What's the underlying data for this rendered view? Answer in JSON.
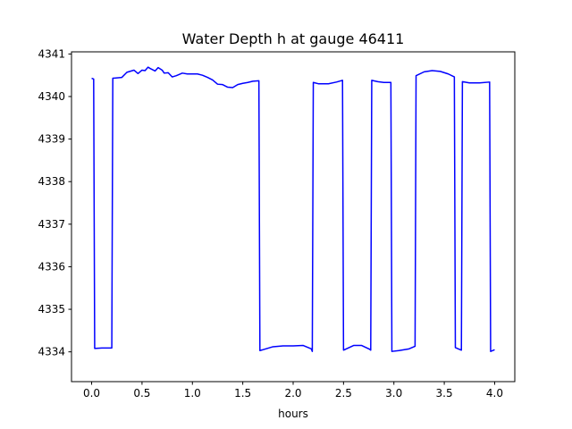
{
  "chart_data": {
    "type": "line",
    "title": "Water Depth h at gauge 46411",
    "xlabel": "hours",
    "ylabel": "",
    "xlim": [
      -0.2,
      4.2
    ],
    "ylim": [
      4333.3,
      4341.05
    ],
    "xticks": [
      0.0,
      0.5,
      1.0,
      1.5,
      2.0,
      2.5,
      3.0,
      3.5,
      4.0
    ],
    "xtick_labels": [
      "0.0",
      "0.5",
      "1.0",
      "1.5",
      "2.0",
      "2.5",
      "3.0",
      "3.5",
      "4.0"
    ],
    "yticks": [
      4334,
      4335,
      4336,
      4337,
      4338,
      4339,
      4340,
      4341
    ],
    "ytick_labels": [
      "4334",
      "4335",
      "4336",
      "4337",
      "4338",
      "4339",
      "4340",
      "4341"
    ],
    "grid": false,
    "series": [
      {
        "color": "#0000ff",
        "x": [
          0.0,
          0.02,
          0.03,
          0.1,
          0.19,
          0.2,
          0.21,
          0.3,
          0.35,
          0.42,
          0.46,
          0.5,
          0.53,
          0.56,
          0.58,
          0.63,
          0.66,
          0.7,
          0.72,
          0.76,
          0.8,
          0.84,
          0.9,
          0.95,
          1.0,
          1.05,
          1.1,
          1.15,
          1.2,
          1.25,
          1.3,
          1.35,
          1.4,
          1.45,
          1.5,
          1.55,
          1.6,
          1.66,
          1.67,
          1.7,
          1.8,
          1.9,
          2.0,
          2.1,
          2.18,
          2.19,
          2.2,
          2.25,
          2.35,
          2.43,
          2.49,
          2.5,
          2.6,
          2.68,
          2.76,
          2.77,
          2.78,
          2.84,
          2.9,
          2.97,
          2.98,
          3.05,
          3.15,
          3.21,
          3.22,
          3.3,
          3.38,
          3.46,
          3.54,
          3.6,
          3.61,
          3.67,
          3.68,
          3.75,
          3.85,
          3.95,
          3.96,
          4.0
        ],
        "y": [
          4340.43,
          4340.41,
          4334.08,
          4334.09,
          4334.09,
          4334.09,
          4340.43,
          4340.45,
          4340.57,
          4340.62,
          4340.54,
          4340.62,
          4340.61,
          4340.69,
          4340.66,
          4340.6,
          4340.68,
          4340.62,
          4340.55,
          4340.56,
          4340.46,
          4340.49,
          4340.55,
          4340.53,
          4340.53,
          4340.53,
          4340.5,
          4340.45,
          4340.39,
          4340.29,
          4340.28,
          4340.22,
          4340.21,
          4340.28,
          4340.31,
          4340.33,
          4340.36,
          4340.37,
          4334.03,
          4334.05,
          4334.12,
          4334.14,
          4334.14,
          4334.15,
          4334.07,
          4334.01,
          4340.33,
          4340.3,
          4340.3,
          4340.34,
          4340.38,
          4334.04,
          4334.15,
          4334.15,
          4334.06,
          4334.04,
          4340.38,
          4340.35,
          4340.33,
          4340.33,
          4334.01,
          4334.03,
          4334.07,
          4334.13,
          4340.49,
          4340.58,
          4340.61,
          4340.59,
          4340.53,
          4340.46,
          4334.1,
          4334.04,
          4340.35,
          4340.32,
          4340.32,
          4340.34,
          4334.01,
          4334.05
        ]
      }
    ]
  }
}
